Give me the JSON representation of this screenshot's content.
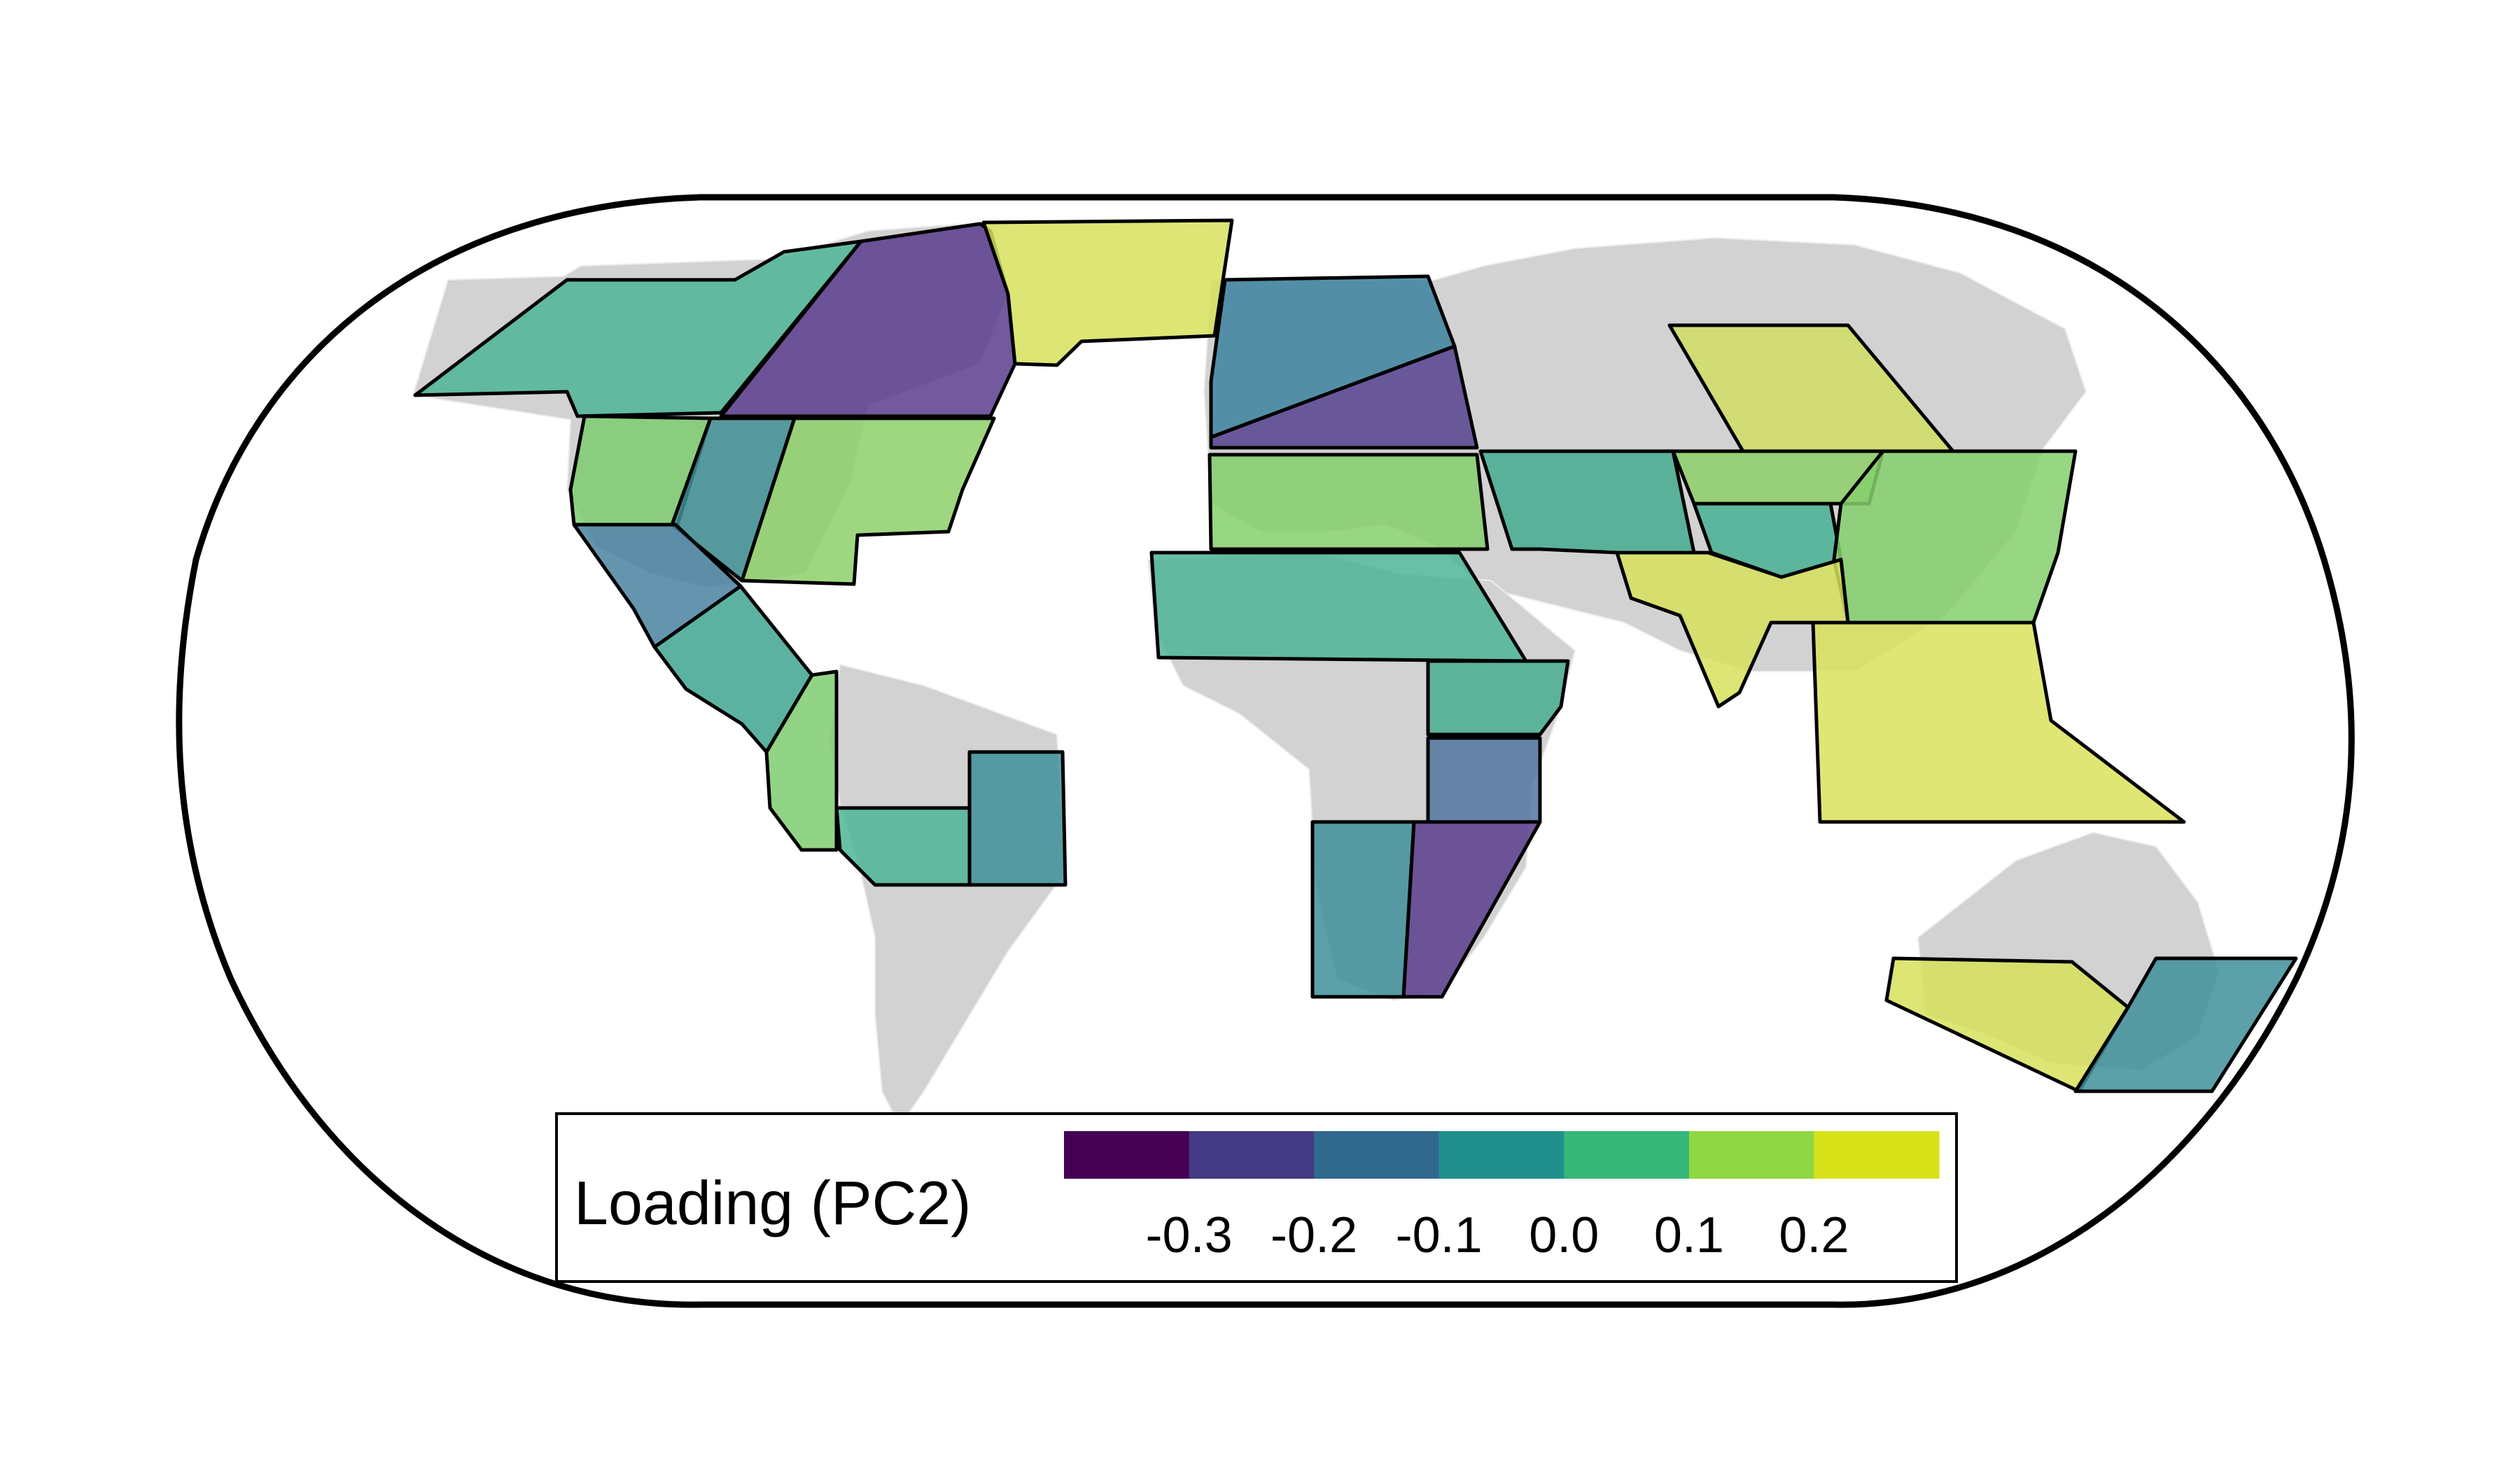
{
  "map": {
    "projection": "Robinson",
    "background_land_color": "#d2d2d2",
    "colormap": "viridis"
  },
  "legend": {
    "title": "Loading (PC2)",
    "placement": "bottom-center",
    "bins": [
      {
        "color": "#440154"
      },
      {
        "color": "#443a83"
      },
      {
        "color": "#31688e"
      },
      {
        "color": "#21908d"
      },
      {
        "color": "#35b779"
      },
      {
        "color": "#8fd744"
      },
      {
        "color": "#d8e219"
      }
    ],
    "ticks": [
      "-0.3",
      "-0.2",
      "-0.1",
      "0.0",
      "0.1",
      "0.2"
    ]
  },
  "regions": [
    {
      "id": "alaska-nw-canada",
      "loading": 0.05,
      "color": "#4db596"
    },
    {
      "id": "canada-greenland",
      "loading": -0.28,
      "color": "#5a3c8c"
    },
    {
      "id": "greenland-iceland",
      "loading": 0.22,
      "color": "#d7e05c"
    },
    {
      "id": "west-north-america",
      "loading": 0.12,
      "color": "#7fcd70"
    },
    {
      "id": "central-north-america",
      "loading": -0.03,
      "color": "#3f8f95"
    },
    {
      "id": "east-north-america",
      "loading": 0.14,
      "color": "#8dd06a"
    },
    {
      "id": "southwest-north-america",
      "loading": -0.08,
      "color": "#4a82a0"
    },
    {
      "id": "central-america",
      "loading": 0.02,
      "color": "#3fa590"
    },
    {
      "id": "northwest-south-america",
      "loading": 0.12,
      "color": "#7fcd70"
    },
    {
      "id": "amazon",
      "loading": 0.04,
      "color": "#4db596"
    },
    {
      "id": "northeast-brazil",
      "loading": -0.04,
      "color": "#3f8f9a"
    },
    {
      "id": "north-europe",
      "loading": -0.07,
      "color": "#3d82a0"
    },
    {
      "id": "central-europe",
      "loading": -0.24,
      "color": "#56428f"
    },
    {
      "id": "mediterranean",
      "loading": 0.13,
      "color": "#85cf6c"
    },
    {
      "id": "sahara",
      "loading": 0.06,
      "color": "#4db596"
    },
    {
      "id": "east-africa",
      "loading": 0.05,
      "color": "#48ae90"
    },
    {
      "id": "central-east-africa",
      "loading": -0.15,
      "color": "#5475a0"
    },
    {
      "id": "southwest-africa",
      "loading": -0.03,
      "color": "#3f8f9a"
    },
    {
      "id": "southeast-africa",
      "loading": -0.3,
      "color": "#5a3c8c"
    },
    {
      "id": "west-asia",
      "loading": 0.04,
      "color": "#45ac90"
    },
    {
      "id": "central-asia",
      "loading": 0.14,
      "color": "#8dd06a"
    },
    {
      "id": "tibet",
      "loading": 0.05,
      "color": "#48b094"
    },
    {
      "id": "north-asia",
      "loading": 0.21,
      "color": "#d1de64"
    },
    {
      "id": "east-asia",
      "loading": 0.13,
      "color": "#85cf6c"
    },
    {
      "id": "south-asia",
      "loading": 0.22,
      "color": "#d7e05c"
    },
    {
      "id": "southeast-asia",
      "loading": 0.23,
      "color": "#dbe25a"
    },
    {
      "id": "south-australia",
      "loading": 0.22,
      "color": "#d7e05c"
    },
    {
      "id": "new-zealand",
      "loading": -0.03,
      "color": "#3f8f9a"
    }
  ]
}
